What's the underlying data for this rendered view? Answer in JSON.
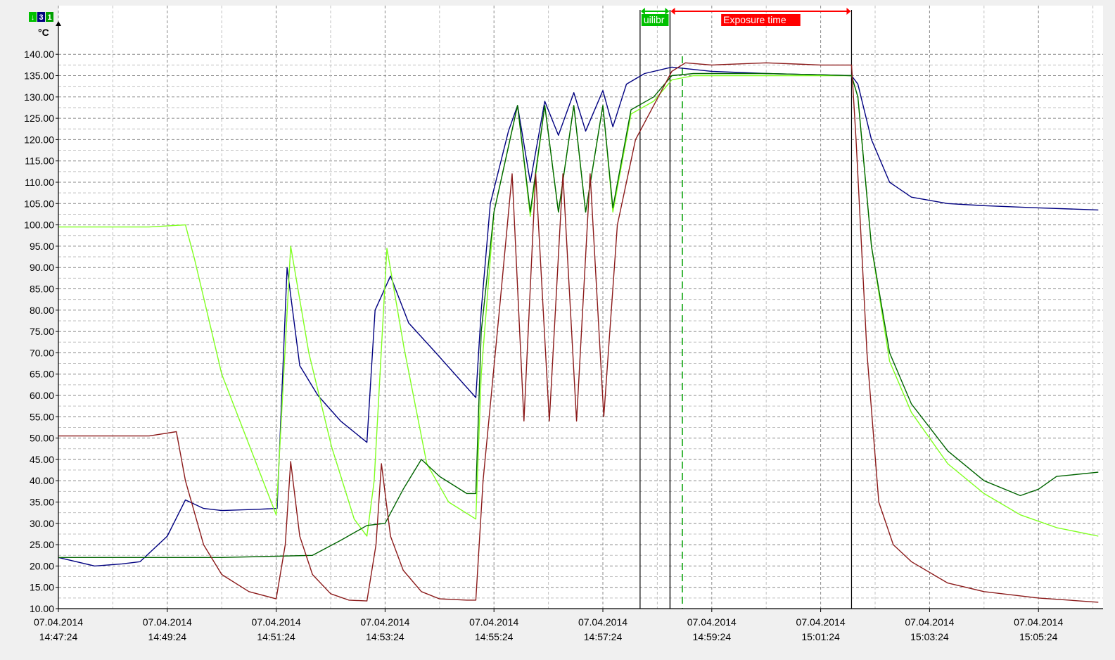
{
  "chart_data": {
    "type": "line",
    "ylabel": "°C",
    "ylim": [
      10,
      140
    ],
    "yticks": [
      "140.00",
      "135.00",
      "130.00",
      "125.00",
      "120.00",
      "115.00",
      "110.00",
      "105.00",
      "100.00",
      "95.00",
      "90.00",
      "85.00",
      "80.00",
      "75.00",
      "70.00",
      "65.00",
      "60.00",
      "55.00",
      "50.00",
      "45.00",
      "40.00",
      "35.00",
      "30.00",
      "25.00",
      "20.00",
      "15.00",
      "10.00"
    ],
    "xlim": [
      "14:47:24",
      "15:06:30"
    ],
    "xticks": [
      {
        "date": "07.04.2014",
        "time": "14:47:24"
      },
      {
        "date": "07.04.2014",
        "time": "14:49:24"
      },
      {
        "date": "07.04.2014",
        "time": "14:51:24"
      },
      {
        "date": "07.04.2014",
        "time": "14:53:24"
      },
      {
        "date": "07.04.2014",
        "time": "14:55:24"
      },
      {
        "date": "07.04.2014",
        "time": "14:57:24"
      },
      {
        "date": "07.04.2014",
        "time": "14:59:24"
      },
      {
        "date": "07.04.2014",
        "time": "15:01:24"
      },
      {
        "date": "07.04.2014",
        "time": "15:03:24"
      },
      {
        "date": "07.04.2014",
        "time": "15:05:24"
      }
    ],
    "grid": true,
    "badges": [
      {
        "text": "↓",
        "color": "#00c000"
      },
      {
        "text": "3",
        "color": "#000080"
      },
      {
        "text": "1",
        "color": "#00a000"
      }
    ],
    "markers": [
      {
        "label": "uilibr",
        "start": "14:58:05",
        "end": "14:58:38",
        "color": "#00c000"
      },
      {
        "label": "Exposure time",
        "start": "14:58:38",
        "end": "15:01:58",
        "color": "#ff0000"
      }
    ],
    "series": [
      {
        "color": "#000080",
        "points": [
          [
            "14:47:24",
            22
          ],
          [
            "14:48:04",
            20
          ],
          [
            "14:48:34",
            20.5
          ],
          [
            "14:48:54",
            21
          ],
          [
            "14:49:24",
            27
          ],
          [
            "14:49:44",
            35.5
          ],
          [
            "14:50:04",
            33.5
          ],
          [
            "14:50:24",
            33
          ],
          [
            "14:51:04",
            33.3
          ],
          [
            "14:51:25",
            33.5
          ],
          [
            "14:51:36",
            90
          ],
          [
            "14:51:50",
            67
          ],
          [
            "14:52:10",
            60
          ],
          [
            "14:52:35",
            54
          ],
          [
            "14:53:04",
            49
          ],
          [
            "14:53:13",
            80
          ],
          [
            "14:53:30",
            88
          ],
          [
            "14:53:50",
            77
          ],
          [
            "14:54:20",
            70
          ],
          [
            "14:55:04",
            59.5
          ],
          [
            "14:55:10",
            80
          ],
          [
            "14:55:20",
            105
          ],
          [
            "14:55:40",
            122
          ],
          [
            "14:55:50",
            128
          ],
          [
            "14:56:04",
            110
          ],
          [
            "14:56:20",
            129
          ],
          [
            "14:56:35",
            121
          ],
          [
            "14:56:52",
            131
          ],
          [
            "14:57:05",
            122
          ],
          [
            "14:57:24",
            131.5
          ],
          [
            "14:57:35",
            123
          ],
          [
            "14:57:50",
            133
          ],
          [
            "14:58:10",
            135.5
          ],
          [
            "14:58:40",
            137
          ],
          [
            "14:59:24",
            136
          ],
          [
            "15:00:24",
            135.5
          ],
          [
            "15:01:24",
            135.2
          ],
          [
            "15:01:58",
            135
          ],
          [
            "15:02:05",
            133
          ],
          [
            "15:02:20",
            120
          ],
          [
            "15:02:40",
            110
          ],
          [
            "15:03:04",
            106.5
          ],
          [
            "15:03:44",
            105
          ],
          [
            "15:04:24",
            104.5
          ],
          [
            "15:05:24",
            104
          ],
          [
            "15:06:30",
            103.5
          ]
        ]
      },
      {
        "color": "#80ff20",
        "points": [
          [
            "14:47:24",
            99.5
          ],
          [
            "14:49:04",
            99.5
          ],
          [
            "14:49:44",
            100
          ],
          [
            "14:49:54",
            92
          ],
          [
            "14:50:24",
            65
          ],
          [
            "14:51:24",
            32
          ],
          [
            "14:51:40",
            95
          ],
          [
            "14:52:00",
            70
          ],
          [
            "14:52:25",
            48
          ],
          [
            "14:52:50",
            31
          ],
          [
            "14:53:04",
            27
          ],
          [
            "14:53:12",
            40
          ],
          [
            "14:53:26",
            94.5
          ],
          [
            "14:53:45",
            71
          ],
          [
            "14:54:10",
            44
          ],
          [
            "14:54:34",
            35
          ],
          [
            "14:55:04",
            31
          ],
          [
            "14:55:10",
            65
          ],
          [
            "14:55:24",
            103
          ],
          [
            "14:55:50",
            128
          ],
          [
            "14:56:04",
            102
          ],
          [
            "14:56:20",
            128
          ],
          [
            "14:56:35",
            103
          ],
          [
            "14:56:52",
            128
          ],
          [
            "14:57:05",
            103
          ],
          [
            "14:57:24",
            128
          ],
          [
            "14:57:35",
            103
          ],
          [
            "14:57:55",
            126
          ],
          [
            "14:58:20",
            129
          ],
          [
            "14:58:40",
            134
          ],
          [
            "14:59:04",
            135
          ],
          [
            "14:59:44",
            135
          ],
          [
            "15:00:24",
            135
          ],
          [
            "15:01:24",
            135
          ],
          [
            "15:01:58",
            135
          ],
          [
            "15:02:05",
            130
          ],
          [
            "15:02:20",
            95
          ],
          [
            "15:02:40",
            68
          ],
          [
            "15:03:04",
            56
          ],
          [
            "15:03:44",
            44
          ],
          [
            "15:04:24",
            37
          ],
          [
            "15:05:04",
            32
          ],
          [
            "15:05:44",
            29
          ],
          [
            "15:06:30",
            27
          ]
        ]
      },
      {
        "color": "#006400",
        "points": [
          [
            "14:47:24",
            22
          ],
          [
            "14:49:24",
            22
          ],
          [
            "14:50:24",
            22
          ],
          [
            "14:51:24",
            22.3
          ],
          [
            "14:52:04",
            22.5
          ],
          [
            "14:52:35",
            26
          ],
          [
            "14:53:04",
            29.5
          ],
          [
            "14:53:24",
            30
          ],
          [
            "14:53:44",
            38
          ],
          [
            "14:54:04",
            45
          ],
          [
            "14:54:24",
            41
          ],
          [
            "14:54:54",
            37
          ],
          [
            "14:55:04",
            37
          ],
          [
            "14:55:10",
            75
          ],
          [
            "14:55:24",
            103
          ],
          [
            "14:55:50",
            128
          ],
          [
            "14:56:04",
            103
          ],
          [
            "14:56:20",
            128
          ],
          [
            "14:56:35",
            103
          ],
          [
            "14:56:52",
            128
          ],
          [
            "14:57:05",
            103
          ],
          [
            "14:57:24",
            128
          ],
          [
            "14:57:35",
            104
          ],
          [
            "14:57:55",
            127
          ],
          [
            "14:58:20",
            130
          ],
          [
            "14:58:40",
            135
          ],
          [
            "14:59:04",
            135.5
          ],
          [
            "15:00:24",
            135.5
          ],
          [
            "15:01:24",
            135.2
          ],
          [
            "15:01:58",
            135
          ],
          [
            "15:02:05",
            130
          ],
          [
            "15:02:20",
            95
          ],
          [
            "15:02:40",
            70
          ],
          [
            "15:03:04",
            58
          ],
          [
            "15:03:44",
            47
          ],
          [
            "15:04:24",
            40
          ],
          [
            "15:05:04",
            36.5
          ],
          [
            "15:05:24",
            38
          ],
          [
            "15:05:44",
            41
          ],
          [
            "15:06:30",
            42
          ]
        ]
      },
      {
        "color": "#8b1a1a",
        "points": [
          [
            "14:47:24",
            50.5
          ],
          [
            "14:49:04",
            50.5
          ],
          [
            "14:49:34",
            51.5
          ],
          [
            "14:49:44",
            40
          ],
          [
            "14:50:04",
            25
          ],
          [
            "14:50:24",
            18
          ],
          [
            "14:50:54",
            14
          ],
          [
            "14:51:24",
            12.3
          ],
          [
            "14:51:34",
            25
          ],
          [
            "14:51:40",
            44.5
          ],
          [
            "14:51:50",
            27
          ],
          [
            "14:52:04",
            18
          ],
          [
            "14:52:24",
            13.5
          ],
          [
            "14:52:44",
            12
          ],
          [
            "14:53:04",
            11.8
          ],
          [
            "14:53:14",
            25
          ],
          [
            "14:53:20",
            44
          ],
          [
            "14:53:30",
            27
          ],
          [
            "14:53:44",
            19
          ],
          [
            "14:54:04",
            14
          ],
          [
            "14:54:24",
            12.3
          ],
          [
            "14:54:54",
            12
          ],
          [
            "14:55:04",
            12
          ],
          [
            "14:55:12",
            40
          ],
          [
            "14:55:30",
            80
          ],
          [
            "14:55:44",
            112
          ],
          [
            "14:55:57",
            54
          ],
          [
            "14:56:10",
            112
          ],
          [
            "14:56:25",
            54
          ],
          [
            "14:56:40",
            112
          ],
          [
            "14:56:55",
            54
          ],
          [
            "14:57:10",
            112
          ],
          [
            "14:57:25",
            55
          ],
          [
            "14:57:40",
            100
          ],
          [
            "14:58:00",
            120
          ],
          [
            "14:58:25",
            130
          ],
          [
            "14:58:40",
            136
          ],
          [
            "14:58:55",
            138
          ],
          [
            "14:59:24",
            137.5
          ],
          [
            "15:00:24",
            138
          ],
          [
            "15:01:24",
            137.5
          ],
          [
            "15:01:58",
            137.5
          ],
          [
            "15:02:03",
            120
          ],
          [
            "15:02:15",
            70
          ],
          [
            "15:02:28",
            35
          ],
          [
            "15:02:44",
            25
          ],
          [
            "15:03:04",
            21
          ],
          [
            "15:03:44",
            16
          ],
          [
            "15:04:24",
            14
          ],
          [
            "15:05:24",
            12.5
          ],
          [
            "15:06:30",
            11.5
          ]
        ]
      }
    ]
  }
}
